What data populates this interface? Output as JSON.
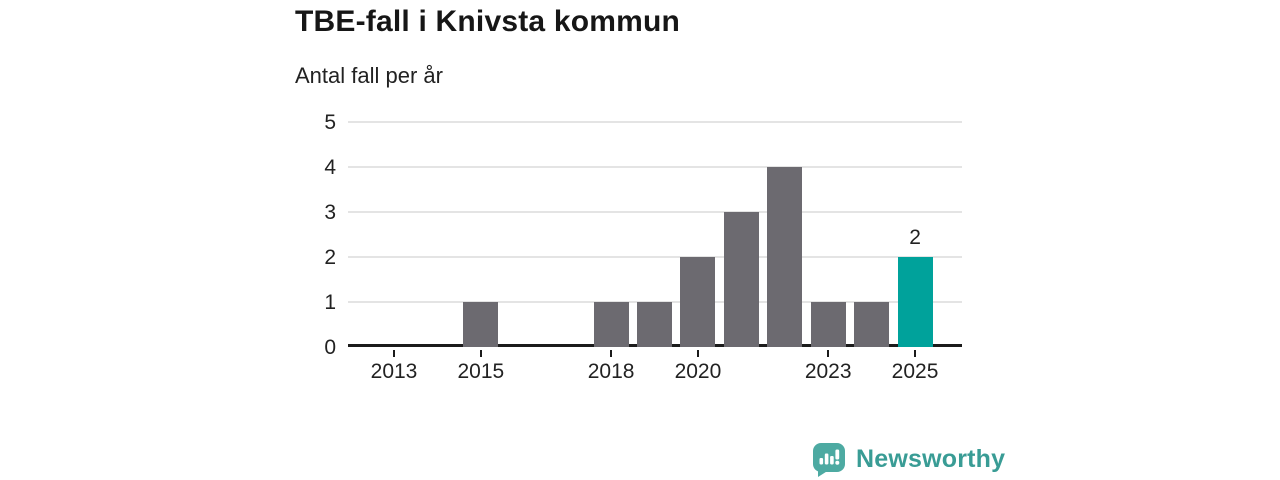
{
  "chart_data": {
    "type": "bar",
    "title": "TBE-fall i Knivsta kommun",
    "subtitle": "Antal fall per år",
    "categories": [
      2012,
      2013,
      2014,
      2015,
      2016,
      2017,
      2018,
      2019,
      2020,
      2021,
      2022,
      2023,
      2024,
      2025
    ],
    "values": [
      0,
      0,
      0,
      1,
      0,
      0,
      1,
      1,
      2,
      3,
      4,
      1,
      1,
      2
    ],
    "x_tick_labels": [
      "2013",
      "2015",
      "2018",
      "2020",
      "2023",
      "2025"
    ],
    "y_ticks": [
      0,
      1,
      2,
      3,
      4,
      5
    ],
    "ylim": [
      0,
      5
    ],
    "grid": true,
    "legend": "none",
    "highlight": {
      "category": 2025,
      "value": 2,
      "label": "2"
    },
    "colors": {
      "bar": "#6c6a70",
      "highlight": "#00a29b",
      "grid": "#e4e4e4",
      "axis": "#1b1b1b",
      "text": "#222222"
    }
  },
  "branding": {
    "logo_text": "Newsworthy",
    "text_color": "#399c95",
    "icon_color": "#4daaa2",
    "icon_glyph_color": "#ffffff"
  }
}
